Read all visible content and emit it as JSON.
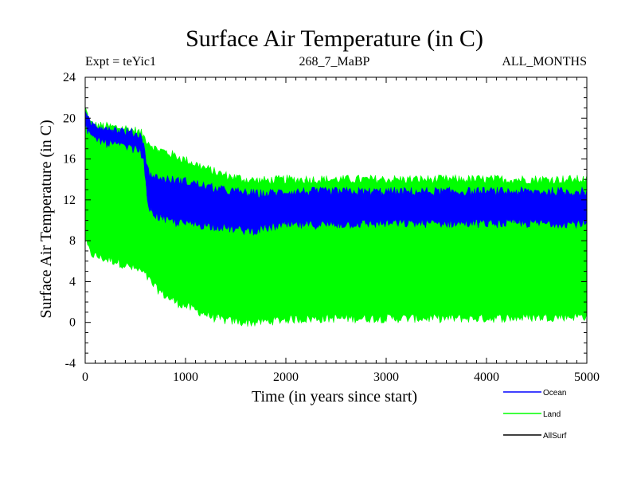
{
  "chart_data": {
    "type": "area",
    "title": "Surface Air Temperature (in C)",
    "subtitle_left": "Expt = teYic1",
    "subtitle_center": "268_7_MaBP",
    "subtitle_right": "ALL_MONTHS",
    "xlabel": "Time (in years since start)",
    "ylabel": "Surface Air Temperature (in C)",
    "xlim": [
      0,
      5000
    ],
    "ylim": [
      -4,
      24
    ],
    "x_ticks": [
      "0",
      "1000",
      "2000",
      "3000",
      "4000",
      "5000"
    ],
    "y_ticks": [
      "-4",
      "0",
      "4",
      "8",
      "12",
      "16",
      "20",
      "24"
    ],
    "legend": [
      {
        "name": "Ocean",
        "color": "#0000ff"
      },
      {
        "name": "Land",
        "color": "#00ff00"
      },
      {
        "name": "AllSurf",
        "color": "#000000"
      }
    ],
    "series": [
      {
        "name": "Land",
        "color": "#00ff00",
        "x": [
          0,
          50,
          100,
          200,
          300,
          400,
          500,
          560,
          600,
          650,
          700,
          800,
          900,
          1000,
          1100,
          1200,
          1300,
          1400,
          1500,
          1600,
          1700,
          1800,
          2000,
          2500,
          3000,
          3500,
          4000,
          4500,
          5000
        ],
        "upper": [
          21,
          19.5,
          19.3,
          19.2,
          19.1,
          19.0,
          18.8,
          18.5,
          18.0,
          17.5,
          17.0,
          16.7,
          16.3,
          15.9,
          15.5,
          15.1,
          14.7,
          14.4,
          14.2,
          14.0,
          13.9,
          13.9,
          14.0,
          14.0,
          14.0,
          14.0,
          14.0,
          14.0,
          14.0
        ],
        "lower": [
          8,
          6.8,
          6.5,
          6.2,
          6.0,
          5.6,
          5.2,
          5.0,
          4.6,
          4.0,
          3.4,
          2.6,
          2.0,
          1.6,
          1.2,
          0.8,
          0.4,
          0.2,
          0.1,
          0.0,
          0.0,
          0.1,
          0.3,
          0.4,
          0.4,
          0.4,
          0.4,
          0.5,
          0.6
        ]
      },
      {
        "name": "Ocean",
        "color": "#0000ff",
        "x": [
          0,
          50,
          100,
          200,
          300,
          400,
          500,
          550,
          580,
          600,
          620,
          650,
          700,
          800,
          900,
          1000,
          1100,
          1200,
          1300,
          1400,
          1500,
          1600,
          1700,
          1800,
          1900,
          2000,
          2500,
          3000,
          3500,
          4000,
          4500,
          5000
        ],
        "upper": [
          20.3,
          19.5,
          19.3,
          19.1,
          18.9,
          18.7,
          18.5,
          18.3,
          17.8,
          16.5,
          15.0,
          14.5,
          14.2,
          14.0,
          13.9,
          13.8,
          13.6,
          13.3,
          13.1,
          12.9,
          12.8,
          12.7,
          12.6,
          12.6,
          12.7,
          12.8,
          12.8,
          12.8,
          12.8,
          12.8,
          12.8,
          12.8
        ],
        "lower": [
          19.5,
          18.2,
          18.0,
          17.6,
          17.4,
          17.2,
          17.0,
          16.8,
          16.0,
          14.0,
          12.0,
          11.0,
          10.5,
          10.0,
          9.8,
          9.7,
          9.6,
          9.5,
          9.4,
          9.3,
          9.1,
          9.0,
          9.0,
          9.2,
          9.4,
          9.5,
          9.6,
          9.7,
          9.7,
          9.7,
          9.7,
          9.7
        ]
      }
    ]
  }
}
